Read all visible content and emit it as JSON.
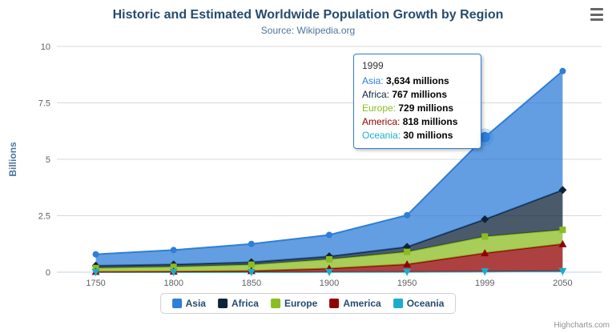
{
  "header": {
    "title": "Historic and Estimated Worldwide Population Growth by Region",
    "subtitle": "Source: Wikipedia.org"
  },
  "chart_data": {
    "type": "area",
    "stacking": "normal",
    "title": "Historic and Estimated Worldwide Population Growth by Region",
    "subtitle": "Source: Wikipedia.org",
    "categories": [
      "1750",
      "1800",
      "1850",
      "1900",
      "1950",
      "1999",
      "2050"
    ],
    "unit": "millions",
    "ylabel": "Billions",
    "ylim": [
      0,
      10
    ],
    "yticks": [
      0,
      2.5,
      5,
      7.5,
      10
    ],
    "grid": true,
    "legend_position": "bottom",
    "series": [
      {
        "name": "Asia",
        "color": "#2f7ed8",
        "marker": "circle",
        "values": [
          502,
          635,
          809,
          947,
          1402,
          3634,
          5268
        ]
      },
      {
        "name": "Africa",
        "color": "#0d233a",
        "marker": "diamond",
        "values": [
          106,
          107,
          111,
          133,
          221,
          767,
          1766
        ]
      },
      {
        "name": "Europe",
        "color": "#8bbc21",
        "marker": "square",
        "values": [
          163,
          203,
          276,
          408,
          547,
          729,
          628
        ]
      },
      {
        "name": "America",
        "color": "#910000",
        "marker": "triangle",
        "values": [
          18,
          31,
          54,
          156,
          339,
          818,
          1201
        ]
      },
      {
        "name": "Oceania",
        "color": "#1aadce",
        "marker": "triangle-down",
        "values": [
          2,
          2,
          2,
          6,
          13,
          30,
          46
        ]
      }
    ],
    "stack_order_bottom_to_top": [
      "Oceania",
      "America",
      "Europe",
      "Africa",
      "Asia"
    ],
    "hover": {
      "series": "Asia",
      "category": "1999"
    }
  },
  "tooltip": {
    "header": "1999",
    "unit": "millions",
    "rows": [
      {
        "label": "Asia",
        "value": "3,634"
      },
      {
        "label": "Africa",
        "value": "767"
      },
      {
        "label": "Europe",
        "value": "729"
      },
      {
        "label": "America",
        "value": "818"
      },
      {
        "label": "Oceania",
        "value": "30"
      }
    ]
  },
  "credits": {
    "label": "Highcharts.com"
  }
}
